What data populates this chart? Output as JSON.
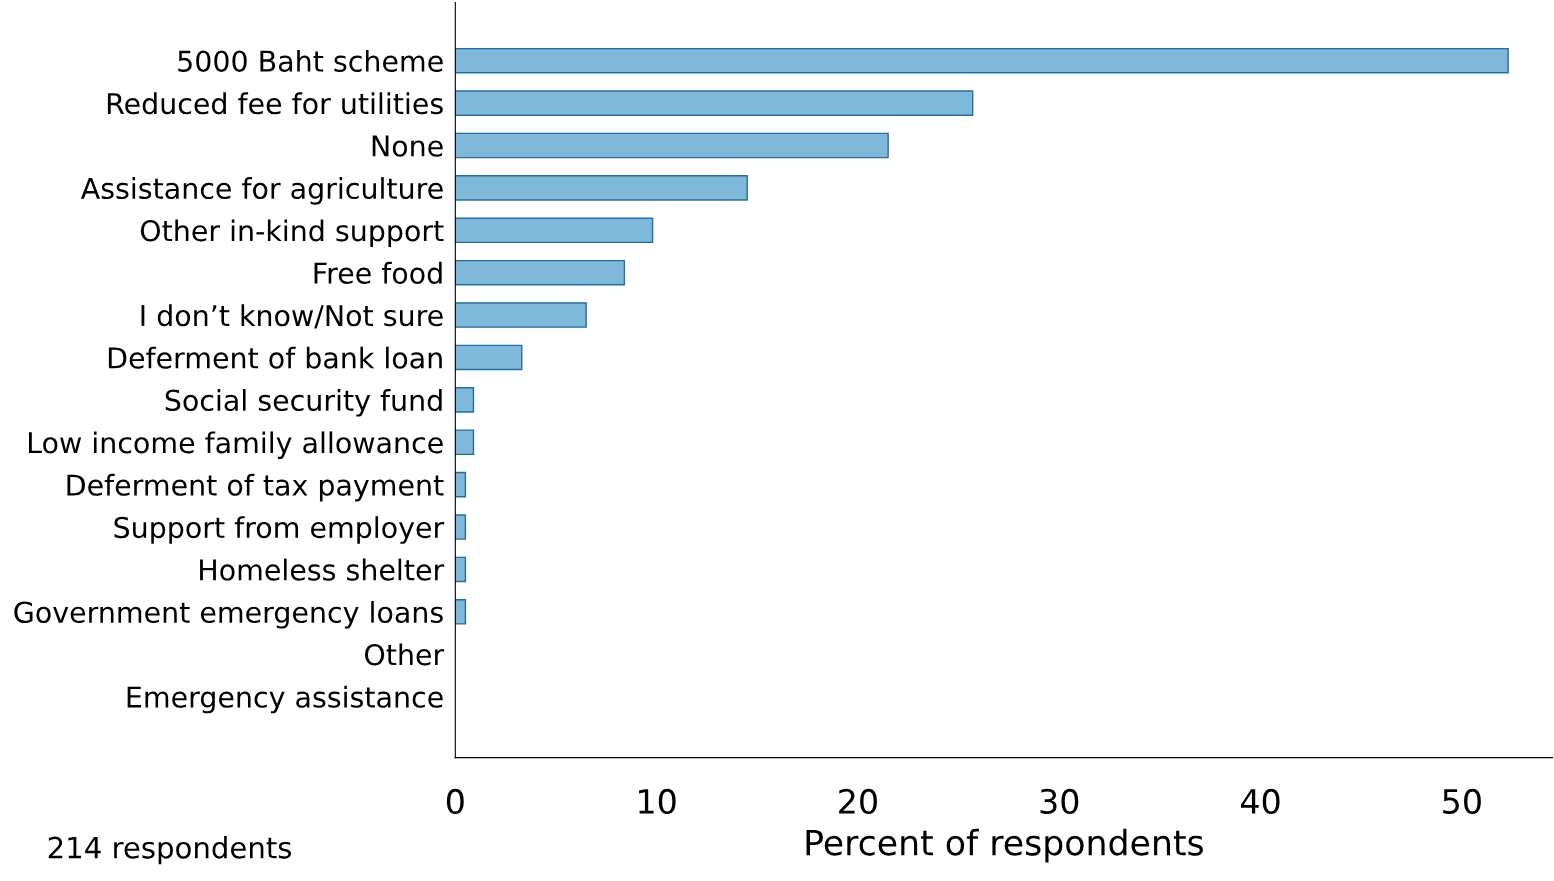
{
  "chart_data": {
    "type": "bar",
    "orientation": "horizontal",
    "categories": [
      "5000 Baht scheme",
      "Reduced fee for utilities",
      "None",
      "Assistance for agriculture",
      "Other in-kind support",
      "Free food",
      "I don’t know/Not sure",
      "Deferment of bank loan",
      "Social security fund",
      "Low income family allowance",
      "Deferment of tax payment",
      "Support from employer",
      "Homeless shelter",
      "Government emergency loans",
      "Other",
      "Emergency assistance"
    ],
    "values": [
      52.3,
      25.7,
      21.5,
      14.5,
      9.8,
      8.4,
      6.5,
      3.3,
      0.9,
      0.9,
      0.5,
      0.5,
      0.5,
      0.5,
      0,
      0
    ],
    "color": "#7fb8d8",
    "xlim": [
      0,
      54.5
    ],
    "xticks": [
      0,
      10,
      20,
      30,
      40,
      50
    ],
    "xlabel": "Percent of respondents",
    "annotations": [
      "214 respondents"
    ],
    "grid": false,
    "legend": false
  }
}
